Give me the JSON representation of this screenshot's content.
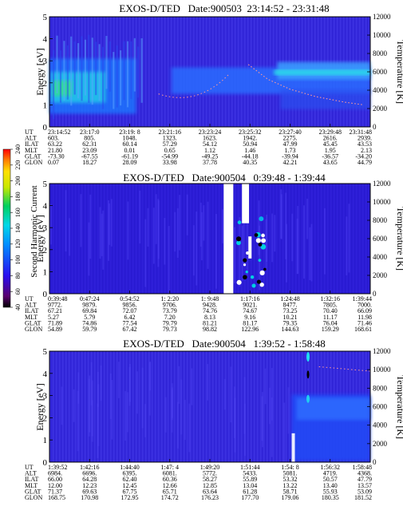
{
  "figure": {
    "colorbar": {
      "label": "Second Harmonic Current",
      "ticks": [
        "40",
        "60",
        "80",
        "100",
        "120",
        "140",
        "160",
        "180",
        "200",
        "220",
        "240"
      ]
    }
  },
  "chart_data": [
    {
      "type": "heatmap",
      "title": "EXOS-D/TED   Date:900503  23:14:52 - 23:31:48",
      "ylabel": "Energy [eV]",
      "y2label": "Temperature [K]",
      "ylim": [
        0,
        5
      ],
      "y2lim": [
        0,
        12000
      ],
      "yticks": [
        "0",
        "1",
        "2",
        "3",
        "4",
        "5"
      ],
      "y2ticks": [
        "0",
        "2000",
        "4000",
        "6000",
        "8000",
        "10000",
        "12000"
      ],
      "ephemeris_labels": [
        "UT",
        "ALT",
        "ILAT",
        "MLT",
        "GLAT",
        "GLON"
      ],
      "ephemeris": [
        [
          "23:14:52",
          "23:17:0",
          "23:19: 8",
          "23:21:16",
          "23:23:24",
          "23:25:32",
          "23:27:40",
          "23:29:48",
          "23:31:48"
        ],
        [
          "603.",
          "805.",
          "1048.",
          "1323.",
          "1623.",
          "1942.",
          "2275.",
          "2616.",
          "2939."
        ],
        [
          "63.22",
          "62.31",
          "60.14",
          "57.29",
          "54.12",
          "50.94",
          "47.99",
          "45.45",
          "43.53"
        ],
        [
          "21.80",
          "23.09",
          "0.01",
          "0.65",
          "1.12",
          "1.46",
          "1.73",
          "1.95",
          "2.13"
        ],
        [
          "-73.30",
          "-67.55",
          "-61.19",
          "-54.99",
          "-49.25",
          "-44.18",
          "-39.94",
          "-36.57",
          "-34.20"
        ],
        [
          "0.07",
          "18.27",
          "28.09",
          "33.98",
          "37.78",
          "40.35",
          "42.21",
          "43.65",
          "44.79"
        ]
      ],
      "temperature_curve": {
        "x": [
          0.62,
          0.68,
          0.75,
          0.83,
          0.92,
          0.98
        ],
        "k": [
          6800,
          5200,
          4100,
          3300,
          2700,
          2400
        ]
      }
    },
    {
      "type": "heatmap",
      "title": "EXOS-D/TED   Date:900504   0:39:48 - 1:39:44",
      "ylabel": "Energy [eV]",
      "y2label": "Temperature [K]",
      "ylim": [
        0,
        5
      ],
      "y2lim": [
        0,
        12000
      ],
      "yticks": [
        "0",
        "1",
        "2",
        "3",
        "4",
        "5"
      ],
      "y2ticks": [
        "0",
        "2000",
        "4000",
        "6000",
        "8000",
        "10000",
        "12000"
      ],
      "ephemeris_labels": [
        "UT",
        "ALT",
        "ILAT",
        "MLT",
        "GLAT",
        "GLON"
      ],
      "ephemeris": [
        [
          "0:39:48",
          "0:47:24",
          "0:54:52",
          "1: 2:20",
          "1: 9:48",
          "1:17:16",
          "1:24:48",
          "1:32:16",
          "1:39:44"
        ],
        [
          "9772.",
          "9879.",
          "9856.",
          "9706.",
          "9428.",
          "9021.",
          "8477.",
          "7805.",
          "7000."
        ],
        [
          "67.21",
          "69.84",
          "72.07",
          "73.79",
          "74.76",
          "74.67",
          "73.25",
          "70.40",
          "66.09"
        ],
        [
          "5.27",
          "5.79",
          "6.42",
          "7.20",
          "8.13",
          "9.16",
          "10.21",
          "11.17",
          "11.98"
        ],
        [
          "71.89",
          "74.86",
          "77.54",
          "79.79",
          "81.21",
          "81.17",
          "79.35",
          "76.04",
          "71.46"
        ],
        [
          "54.89",
          "59.79",
          "67.42",
          "79.73",
          "98.82",
          "122.96",
          "144.63",
          "159.29",
          "168.61"
        ]
      ]
    },
    {
      "type": "heatmap",
      "title": "EXOS-D/TED   Date:900504   1:39:52 - 1:58:48",
      "ylabel": "Energy [eV]",
      "y2label": "Temperature [K]",
      "ylim": [
        0,
        5
      ],
      "y2lim": [
        0,
        12000
      ],
      "yticks": [
        "0",
        "1",
        "2",
        "3",
        "4",
        "5"
      ],
      "y2ticks": [
        "0",
        "2000",
        "4000",
        "6000",
        "8000",
        "10000",
        "12000"
      ],
      "ephemeris_labels": [
        "UT",
        "ALT",
        "ILAT",
        "MLT",
        "GLAT",
        "GLON"
      ],
      "ephemeris": [
        [
          "1:39:52",
          "1:42:16",
          "1:44:40",
          "1:47: 4",
          "1:49:20",
          "1:51:44",
          "1:54: 8",
          "1:56:32",
          "1:58:48"
        ],
        [
          "6984.",
          "6696.",
          "6395.",
          "6081.",
          "5772.",
          "5433.",
          "5081.",
          "4719.",
          "4368."
        ],
        [
          "66.00",
          "64.28",
          "62.40",
          "60.36",
          "58.27",
          "55.89",
          "53.32",
          "50.57",
          "47.79"
        ],
        [
          "12.00",
          "12.23",
          "12.45",
          "12.66",
          "12.85",
          "13.04",
          "13.22",
          "13.40",
          "13.57"
        ],
        [
          "71.37",
          "69.63",
          "67.75",
          "65.71",
          "63.64",
          "61.28",
          "58.71",
          "55.93",
          "53.09"
        ],
        [
          "168.75",
          "170.98",
          "172.95",
          "174.72",
          "176.23",
          "177.70",
          "179.06",
          "180.35",
          "181.52"
        ]
      ]
    }
  ]
}
